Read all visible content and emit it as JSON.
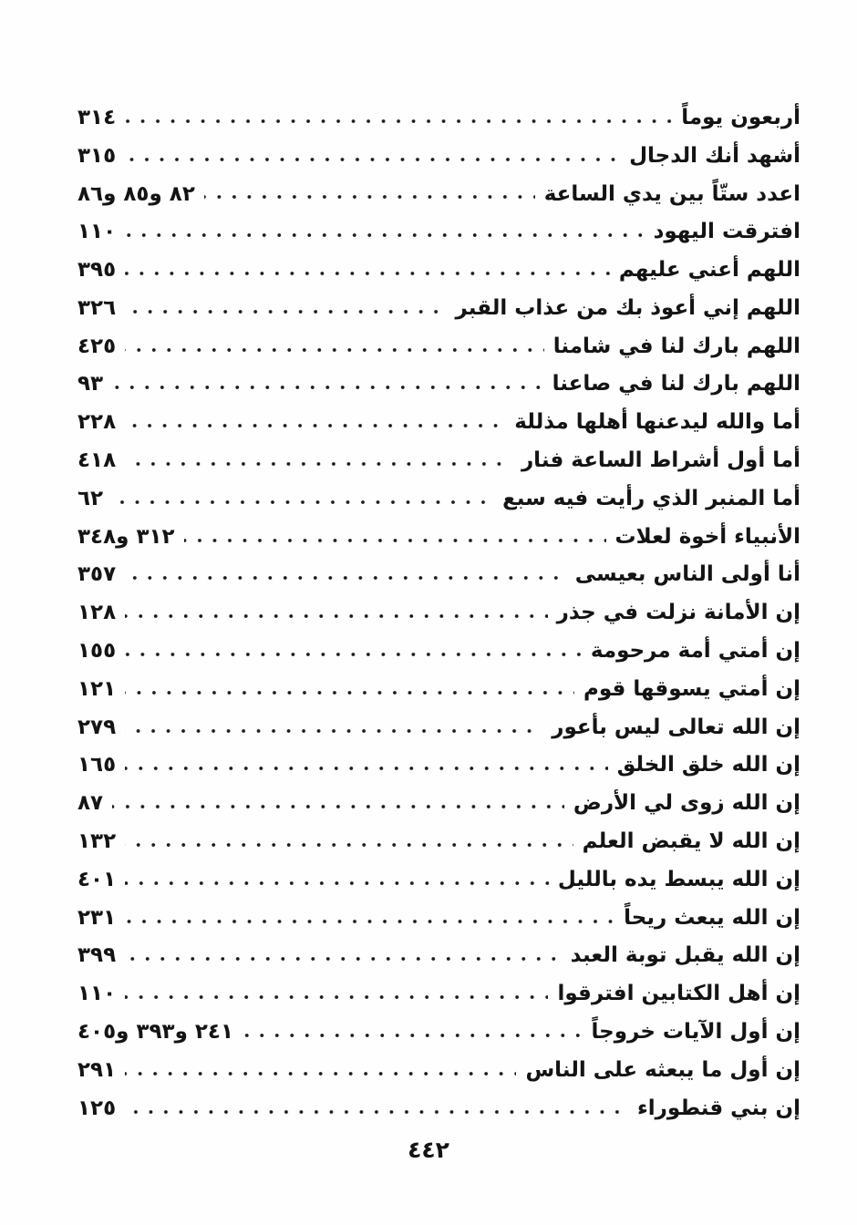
{
  "page": {
    "footer_page_number": "٤٤٢"
  },
  "index_entries": [
    {
      "title": "أربعون يوماً",
      "pages": "٣١٤"
    },
    {
      "title": "أشهد أنك الدجال",
      "pages": "٣١٥"
    },
    {
      "title": "اعدد ستّاً بين يدي الساعة",
      "pages": "٨٢ و٨٥ و٨٦"
    },
    {
      "title": "افترقت اليهود",
      "pages": "١١٠"
    },
    {
      "title": "اللهم أعني عليهم",
      "pages": "٣٩٥"
    },
    {
      "title": "اللهم إني أعوذ بك من عذاب القبر",
      "pages": "٣٢٦"
    },
    {
      "title": "اللهم بارك لنا في شامنا",
      "pages": "٤٢٥"
    },
    {
      "title": "اللهم بارك لنا في صاعنا",
      "pages": "٩٣"
    },
    {
      "title": "أما والله ليدعنها أهلها مذللة",
      "pages": "٢٢٨"
    },
    {
      "title": "أما أول أشراط الساعة فنار",
      "pages": "٤١٨"
    },
    {
      "title": "أما المنبر الذي رأيت فيه سبع",
      "pages": "٦٢"
    },
    {
      "title": "الأنبياء أخوة لعلات",
      "pages": "٣١٢ و٣٤٨"
    },
    {
      "title": "أنا أولى الناس بعيسى",
      "pages": "٣٥٧"
    },
    {
      "title": "إن الأمانة نزلت في جذر",
      "pages": "١٢٨"
    },
    {
      "title": "إن أمتي أمة مرحومة",
      "pages": "١٥٥"
    },
    {
      "title": "إن أمتي يسوقها قوم",
      "pages": "١٢١"
    },
    {
      "title": "إن الله تعالى ليس بأعور",
      "pages": "٢٧٩"
    },
    {
      "title": "إن الله خلق الخلق",
      "pages": "١٦٥"
    },
    {
      "title": "إن الله زوى لي الأرض",
      "pages": "٨٧"
    },
    {
      "title": "إن الله لا يقبض العلم",
      "pages": "١٣٢"
    },
    {
      "title": "إن الله يبسط يده بالليل",
      "pages": "٤٠١"
    },
    {
      "title": "إن الله يبعث ريحاً",
      "pages": "٢٣١"
    },
    {
      "title": "إن الله يقبل توبة العبد",
      "pages": "٣٩٩"
    },
    {
      "title": "إن أهل الكتابين افترقوا",
      "pages": "١١٠"
    },
    {
      "title": "إن أول الآيات خروجاً",
      "pages": "٢٤١ و٣٩٣ و٤٠٥"
    },
    {
      "title": "إن أول ما يبعثه على الناس",
      "pages": "٢٩١"
    },
    {
      "title": "إن بني قنطوراء",
      "pages": "١٢٥"
    }
  ]
}
